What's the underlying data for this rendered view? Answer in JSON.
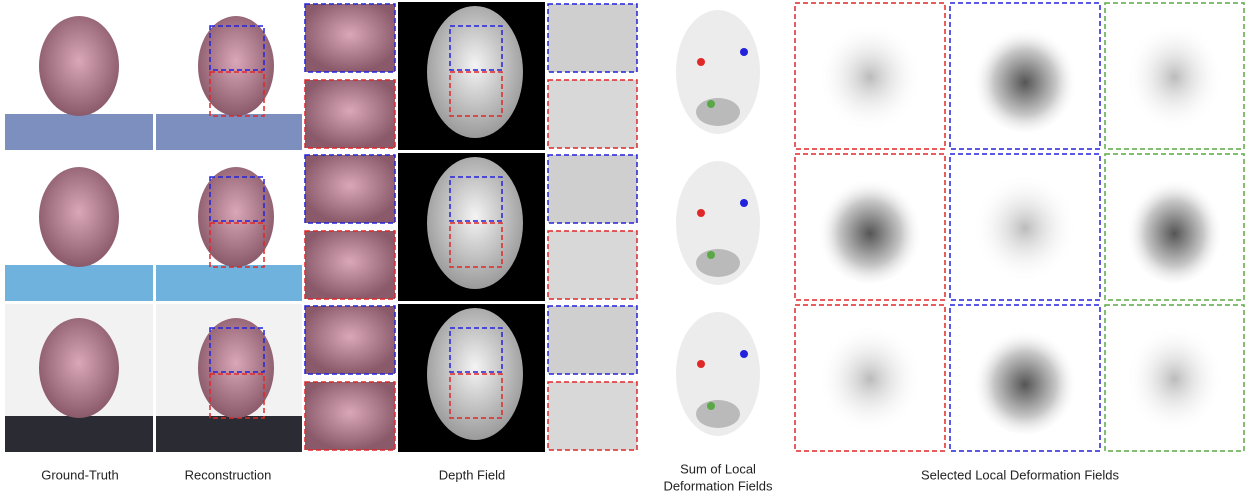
{
  "captions": {
    "ground_truth": "Ground-Truth",
    "reconstruction": "Reconstruction",
    "depth_field": "Depth Field",
    "sum_local": [
      "Sum of Local",
      "Deformation Fields"
    ],
    "selected_local": "Selected Local Deformation Fields"
  }
}
